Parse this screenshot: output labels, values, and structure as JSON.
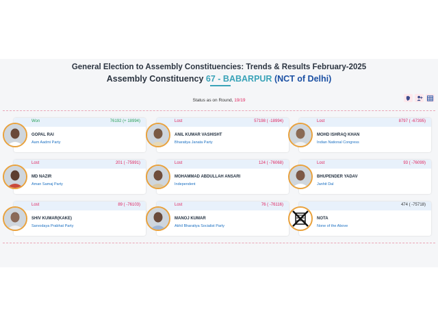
{
  "header": {
    "title": "General Election to Assembly Constituencies: Trends & Results February-2025",
    "constituency_label": "Assembly Constituency",
    "constituency_number": "67 - BABARPUR",
    "state": "(NCT of Delhi)"
  },
  "status": {
    "label": "Status as on Round,",
    "round": "19/19"
  },
  "toolbar": {
    "icons": [
      "map-icon",
      "user-plus-icon",
      "table-icon"
    ]
  },
  "colors": {
    "won": "#2aa15a",
    "lost": "#e0245e",
    "accent": "#3aa3b8",
    "state": "#1a4fa3",
    "party_link": "#1a6fc1",
    "avatar_ring": "#e9a13b"
  },
  "candidates": [
    {
      "status": "Won",
      "votes": "76192 (+ 18994)",
      "name": "GOPAL RAI",
      "party": "Aam Aadmi Party"
    },
    {
      "status": "Lost",
      "votes": "57198 ( -18994)",
      "name": "ANIL KUMAR VASHISHT",
      "party": "Bharatiya Janata Party"
    },
    {
      "status": "Lost",
      "votes": "8797 ( -67395)",
      "name": "MOHD ISHRAQ KHAN",
      "party": "Indian National Congress"
    },
    {
      "status": "Lost",
      "votes": "201 ( -75991)",
      "name": "MD NAZIR",
      "party": "Aman Samaj Party"
    },
    {
      "status": "Lost",
      "votes": "124 ( -76068)",
      "name": "MOHAMMAD ABDULLAH ANSARI",
      "party": "Independent"
    },
    {
      "status": "Lost",
      "votes": "93 ( -76099)",
      "name": "BHUPENDER YADAV",
      "party": "Janhit Dal"
    },
    {
      "status": "Lost",
      "votes": "89 ( -76103)",
      "name": "SHIV KUMAR(KAKE)",
      "party": "Sarvodaya Prabhat Party"
    },
    {
      "status": "Lost",
      "votes": "76 ( -76116)",
      "name": "MANOJ KUMAR",
      "party": "Akhil Bharatiya Socialist Party"
    },
    {
      "status": "",
      "votes": "474 ( -75718)",
      "name": "NOTA",
      "party": "None of the Above"
    }
  ]
}
